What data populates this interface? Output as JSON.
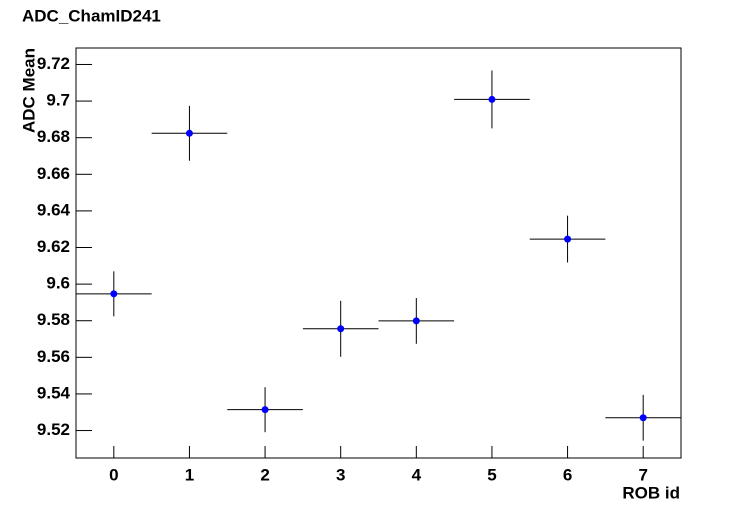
{
  "chart_data": {
    "type": "scatter",
    "title": "ADC_ChamID241",
    "x_label": "ROB id",
    "y_label": "ADC Mean",
    "x": [
      0,
      1,
      2,
      3,
      4,
      5,
      6,
      7
    ],
    "series": [
      {
        "color": "#0000ff",
        "values": [
          9.5947,
          9.6824,
          9.5314,
          9.5756,
          9.5799,
          9.7009,
          9.6246,
          9.527
        ],
        "errors": [
          0.0123,
          0.015,
          0.0123,
          0.0153,
          0.0125,
          0.0158,
          0.0128,
          0.0125
        ],
        "x_errors": [
          0.5,
          0.5,
          0.5,
          0.5,
          0.5,
          0.5,
          0.5,
          0.5
        ]
      }
    ],
    "xlim": [
      -0.5,
      7.5
    ],
    "ylim": [
      9.505,
      9.729
    ],
    "xticks": [
      0,
      1,
      2,
      3,
      4,
      5,
      6,
      7
    ],
    "yticks": [
      9.52,
      9.54,
      9.56,
      9.58,
      9.6,
      9.62,
      9.64,
      9.66,
      9.68,
      9.7,
      9.72
    ],
    "grid": false
  }
}
